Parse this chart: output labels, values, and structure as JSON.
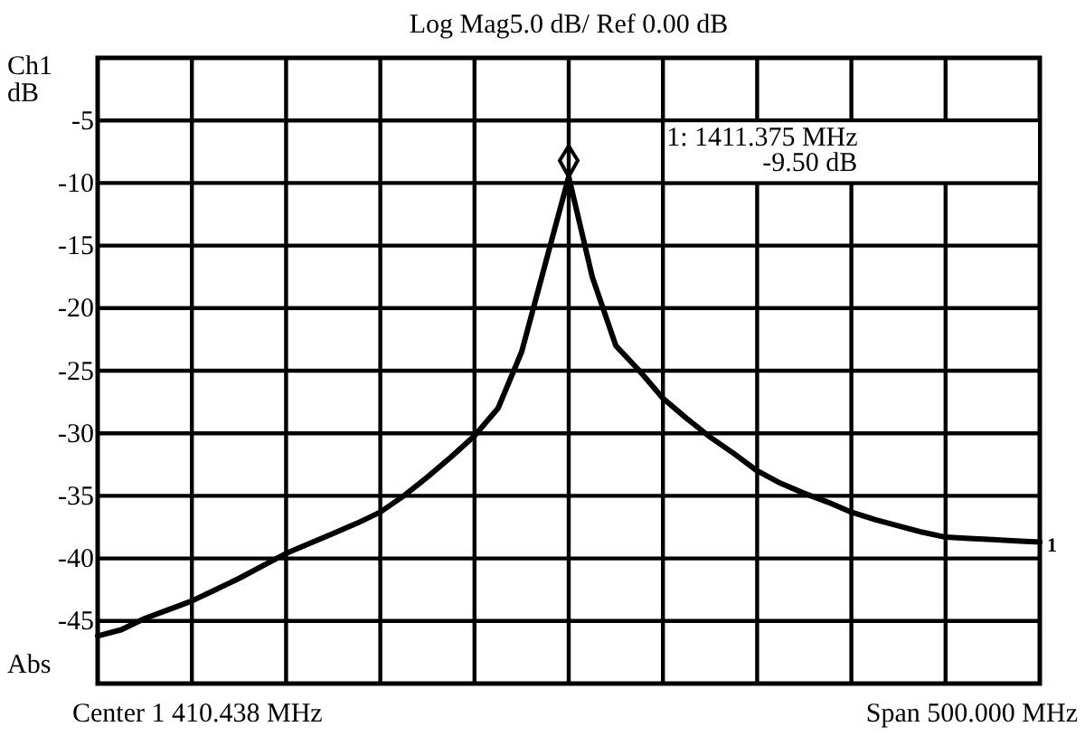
{
  "chart_data": {
    "type": "line",
    "title": "Log Mag5.0 dB/  Ref  0.00 dB",
    "ylabel": "dB",
    "annotations": [
      "Ch1",
      "Abs",
      "Center 1 410.438 MHz",
      "Span 500.000 MHz",
      "1: 1411.375 MHz\n-9.50 dB",
      "1"
    ],
    "categories": [
      null,
      null,
      null,
      null,
      null,
      null,
      null,
      null,
      null,
      null,
      null,
      null,
      null,
      null,
      null,
      null,
      null,
      null,
      null,
      null,
      null,
      null,
      null,
      null,
      null,
      null,
      null,
      null,
      null,
      null,
      null,
      null,
      null,
      null,
      null,
      null,
      null,
      null,
      null,
      null,
      null
    ],
    "series": [
      {
        "color": "#000000",
        "values": [
          -46.2,
          -45.7,
          -44.8,
          -44.1,
          -43.4,
          -42.5,
          -41.6,
          -40.6,
          -39.6,
          -38.8,
          -38.0,
          -37.2,
          -36.3,
          -35.0,
          -33.5,
          -31.9,
          -30.2,
          -28.0,
          -23.5,
          -16.5,
          -9.5,
          -17.5,
          -23,
          -25,
          -27.2,
          -28.8,
          -30.3,
          -31.6,
          -33,
          -34,
          -34.8,
          -35.5,
          -36.3,
          -36.9,
          -37.4,
          -37.9,
          -38.3,
          -38.4,
          -38.5,
          -38.6,
          -38.7
        ]
      }
    ],
    "ylim": [
      -50,
      0
    ],
    "yticks": [
      -5,
      -10,
      -15,
      -20,
      -25,
      -30,
      -35,
      -40,
      -45
    ],
    "grid": true,
    "marker": "none",
    "line_style": "solid"
  }
}
